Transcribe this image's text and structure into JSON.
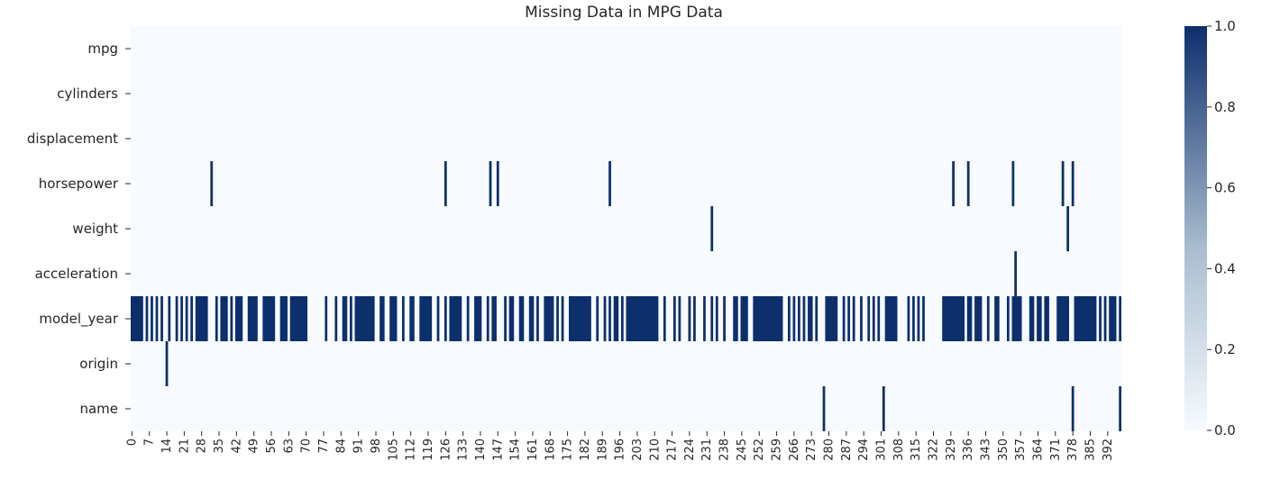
{
  "chart_data": {
    "type": "heatmap",
    "title": "Missing Data in MPG Data",
    "n_rows": 398,
    "rows": [
      "mpg",
      "cylinders",
      "displacement",
      "horsepower",
      "weight",
      "acceleration",
      "model_year",
      "origin",
      "name"
    ],
    "x_tick_labels": [
      0,
      7,
      14,
      21,
      28,
      35,
      42,
      49,
      56,
      63,
      70,
      77,
      84,
      91,
      98,
      105,
      112,
      119,
      126,
      133,
      140,
      147,
      154,
      161,
      168,
      175,
      182,
      189,
      196,
      203,
      210,
      217,
      224,
      231,
      238,
      245,
      252,
      259,
      266,
      273,
      280,
      287,
      294,
      301,
      308,
      315,
      322,
      329,
      336,
      343,
      350,
      357,
      364,
      371,
      378,
      385,
      392
    ],
    "missing": {
      "mpg": [],
      "cylinders": [],
      "displacement": [],
      "horsepower": [
        32,
        126,
        144,
        147,
        192,
        330,
        336,
        354,
        374,
        378
      ],
      "weight": [
        233,
        376
      ],
      "acceleration": [
        355
      ],
      "model_year": [
        [
          0,
          5
        ],
        [
          6,
          7
        ],
        [
          8,
          9
        ],
        [
          10,
          11
        ],
        [
          12,
          13
        ],
        [
          15,
          16
        ],
        [
          18,
          19
        ],
        [
          20,
          21
        ],
        [
          22,
          23
        ],
        [
          24,
          25
        ],
        [
          26,
          31
        ],
        [
          34,
          35
        ],
        [
          36,
          39
        ],
        [
          40,
          41
        ],
        [
          42,
          45
        ],
        [
          47,
          51
        ],
        [
          53,
          58
        ],
        [
          60,
          63
        ],
        [
          64,
          71
        ],
        [
          78,
          79
        ],
        [
          82,
          83
        ],
        [
          85,
          87
        ],
        [
          88,
          89
        ],
        [
          90,
          98
        ],
        [
          100,
          102
        ],
        [
          104,
          107
        ],
        [
          109,
          110
        ],
        [
          112,
          114
        ],
        [
          116,
          121
        ],
        [
          123,
          124
        ],
        [
          126,
          127
        ],
        [
          128,
          133
        ],
        [
          135,
          136
        ],
        [
          138,
          141
        ],
        [
          143,
          144
        ],
        [
          145,
          147
        ],
        [
          150,
          151
        ],
        [
          152,
          154
        ],
        [
          156,
          158
        ],
        [
          160,
          162
        ],
        [
          163,
          164
        ],
        [
          166,
          170
        ],
        [
          171,
          172
        ],
        [
          173,
          174
        ],
        [
          176,
          185
        ],
        [
          187,
          188
        ],
        [
          190,
          191
        ],
        [
          192,
          193
        ],
        [
          194,
          196
        ],
        [
          197,
          198
        ],
        [
          199,
          212
        ],
        [
          214,
          215
        ],
        [
          218,
          219
        ],
        [
          220,
          221
        ],
        [
          224,
          225
        ],
        [
          226,
          227
        ],
        [
          230,
          231
        ],
        [
          233,
          234
        ],
        [
          235,
          236
        ],
        [
          238,
          239
        ],
        [
          242,
          244
        ],
        [
          245,
          248
        ],
        [
          250,
          262
        ],
        [
          264,
          265
        ],
        [
          266,
          267
        ],
        [
          268,
          269
        ],
        [
          270,
          271
        ],
        [
          272,
          274
        ],
        [
          275,
          276
        ],
        [
          279,
          284
        ],
        [
          286,
          287
        ],
        [
          288,
          289
        ],
        [
          290,
          291
        ],
        [
          293,
          294
        ],
        [
          296,
          297
        ],
        [
          298,
          299
        ],
        [
          300,
          301
        ],
        [
          303,
          308
        ],
        [
          312,
          313
        ],
        [
          314,
          315
        ],
        [
          316,
          317
        ],
        [
          318,
          319
        ],
        [
          326,
          335
        ],
        [
          336,
          338
        ],
        [
          339,
          342
        ],
        [
          344,
          345
        ],
        [
          347,
          349
        ],
        [
          352,
          353
        ],
        [
          354,
          358
        ],
        [
          361,
          363
        ],
        [
          364,
          366
        ],
        [
          367,
          369
        ],
        [
          372,
          377
        ],
        [
          379,
          388
        ],
        [
          389,
          390
        ],
        [
          391,
          392
        ],
        [
          393,
          396
        ],
        [
          397,
          398
        ]
      ],
      "origin": [
        14
      ],
      "name": [
        278,
        302,
        378,
        397
      ]
    },
    "colorbar": {
      "ticks": [
        "0.0",
        "0.2",
        "0.4",
        "0.6",
        "0.8",
        "1.0"
      ],
      "min": 0,
      "max": 1,
      "low_color": "#f7fbff",
      "mid_color": "#a9bdd0",
      "high_color": "#0d2f6b"
    },
    "colors": {
      "missing": "#0d2f6b",
      "present": "#f7fbff"
    }
  }
}
